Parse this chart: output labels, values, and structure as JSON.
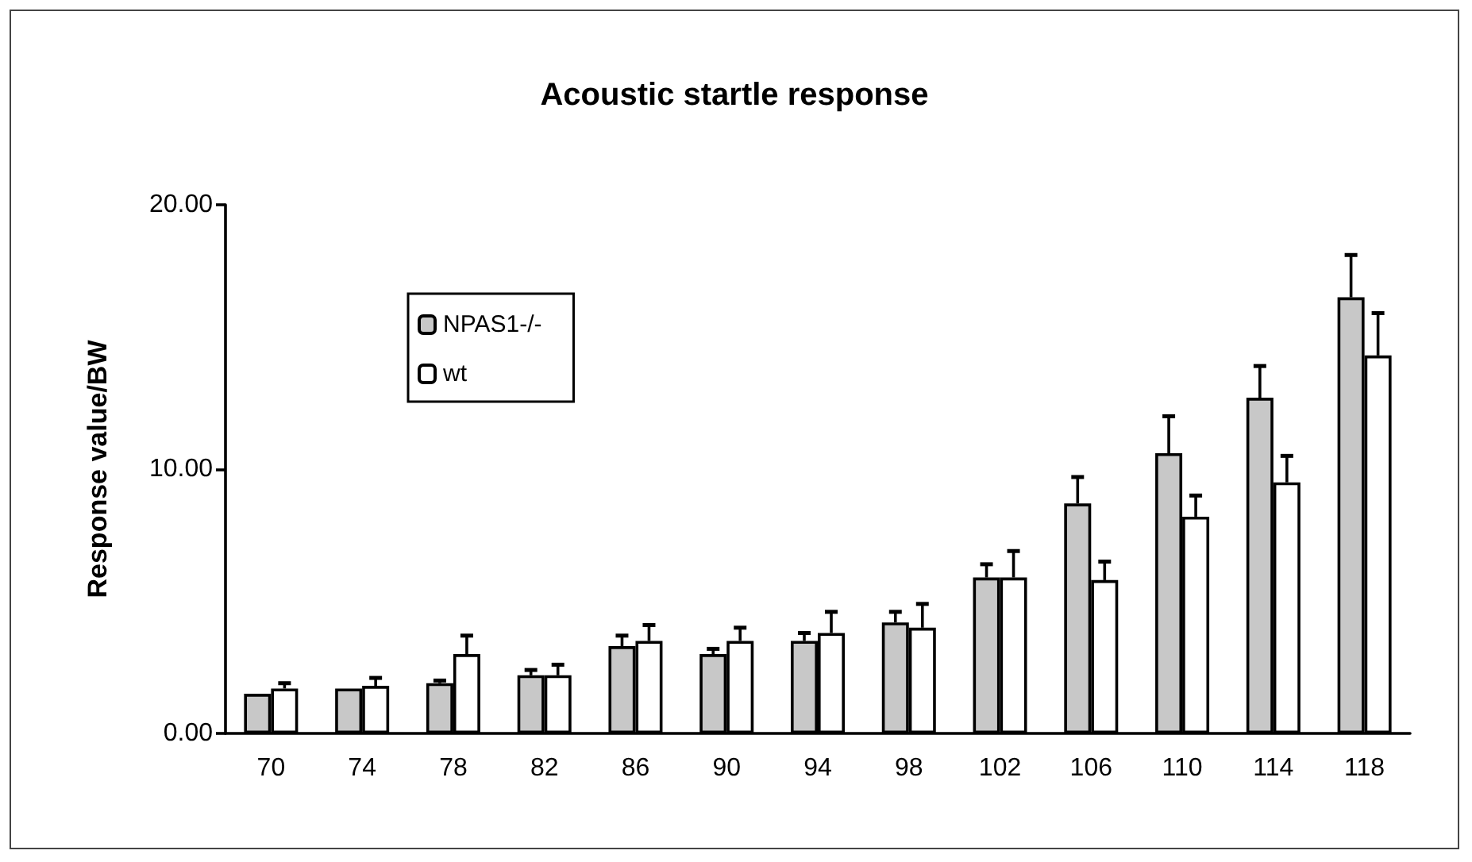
{
  "chart_data": {
    "type": "bar",
    "title": "Acoustic startle response",
    "ylabel": "Response value/BW",
    "categories": [
      "70",
      "74",
      "78",
      "82",
      "86",
      "90",
      "94",
      "98",
      "102",
      "106",
      "110",
      "114",
      "118"
    ],
    "series": [
      {
        "name": "NPAS1-/-",
        "color": "#c8c8c8",
        "values": [
          1.5,
          1.7,
          1.9,
          2.2,
          3.3,
          3.0,
          3.5,
          4.2,
          5.9,
          8.7,
          10.6,
          12.7,
          16.5
        ],
        "errors": [
          null,
          null,
          [
            1.9,
            2.0
          ],
          [
            2.2,
            2.4
          ],
          [
            3.3,
            3.7
          ],
          [
            3.0,
            3.2
          ],
          [
            3.5,
            3.8
          ],
          [
            4.2,
            4.6
          ],
          [
            5.9,
            6.4
          ],
          [
            8.7,
            9.7
          ],
          [
            10.6,
            12.0
          ],
          [
            12.7,
            13.9
          ],
          [
            16.5,
            18.1
          ]
        ]
      },
      {
        "name": "wt",
        "color": "#ffffff",
        "values": [
          1.7,
          1.8,
          3.0,
          2.2,
          3.5,
          3.5,
          3.8,
          4.0,
          5.9,
          5.8,
          8.2,
          9.5,
          14.3
        ],
        "errors": [
          [
            1.7,
            1.9
          ],
          [
            1.8,
            2.1
          ],
          [
            3.0,
            3.7
          ],
          [
            2.2,
            2.6
          ],
          [
            3.5,
            4.1
          ],
          [
            3.5,
            4.0
          ],
          [
            3.8,
            4.6
          ],
          [
            4.0,
            4.9
          ],
          [
            5.9,
            6.9
          ],
          [
            5.8,
            6.5
          ],
          [
            8.2,
            9.0
          ],
          [
            9.5,
            10.5
          ],
          [
            14.3,
            15.9
          ]
        ]
      }
    ],
    "ylim": [
      0,
      20
    ],
    "yticks": [
      {
        "value": 0,
        "label": "0.00"
      },
      {
        "value": 10,
        "label": "10.00"
      },
      {
        "value": 20,
        "label": "20.00"
      }
    ],
    "grid": false,
    "legend": "top left"
  }
}
